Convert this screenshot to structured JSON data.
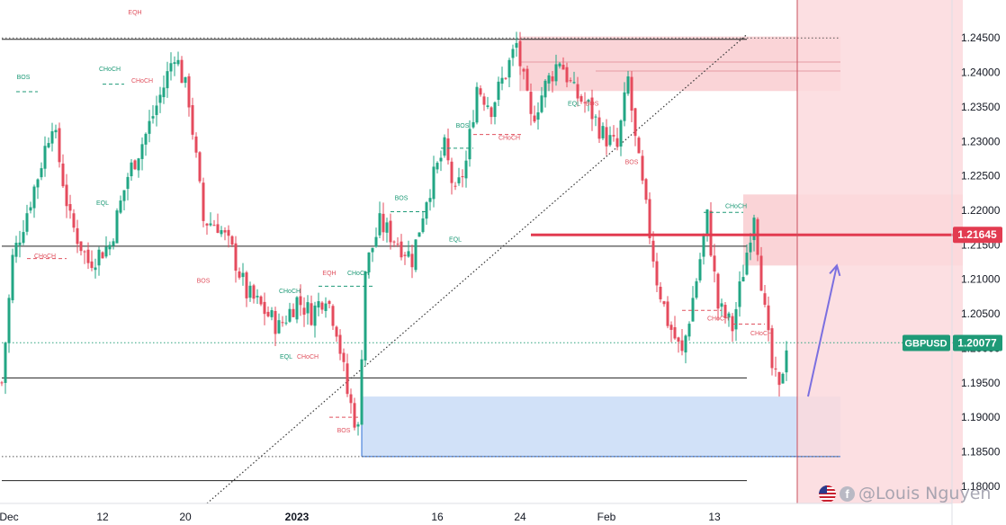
{
  "chart_data": {
    "type": "candlestick",
    "symbol": "GBPUSD",
    "current_price": "1.20077",
    "marked_level": "1.21645",
    "ylim": [
      1.1775,
      1.2505
    ],
    "y_ticks": [
      "1.24500",
      "1.24000",
      "1.23500",
      "1.23000",
      "1.22500",
      "1.22000",
      "1.21500",
      "1.21000",
      "1.20500",
      "1.20000",
      "1.19500",
      "1.19000",
      "1.18500",
      "1.18000"
    ],
    "x_ticks": [
      "Dec",
      "12",
      "20",
      "2023",
      "16",
      "24",
      "Feb",
      "13"
    ],
    "colors": {
      "up": "#22a684",
      "down": "#e54b5d",
      "supply": "#f8c5ca",
      "demand": "#c9dcf7",
      "arrow": "#7b6fe0",
      "level": "#e23b50",
      "label_green": "#1e9a77",
      "label_red": "#e0525f"
    },
    "anchors": [
      {
        "i": 0,
        "p": 1.195
      },
      {
        "i": 3,
        "p": 1.213
      },
      {
        "i": 10,
        "p": 1.225
      },
      {
        "i": 14,
        "p": 1.233
      },
      {
        "i": 19,
        "p": 1.2185
      },
      {
        "i": 24,
        "p": 1.2125
      },
      {
        "i": 30,
        "p": 1.215
      },
      {
        "i": 35,
        "p": 1.225
      },
      {
        "i": 40,
        "p": 1.231
      },
      {
        "i": 45,
        "p": 1.238
      },
      {
        "i": 48,
        "p": 1.243
      },
      {
        "i": 52,
        "p": 1.236
      },
      {
        "i": 56,
        "p": 1.2185
      },
      {
        "i": 60,
        "p": 1.218
      },
      {
        "i": 64,
        "p": 1.214
      },
      {
        "i": 68,
        "p": 1.208
      },
      {
        "i": 72,
        "p": 1.206
      },
      {
        "i": 77,
        "p": 1.203
      },
      {
        "i": 82,
        "p": 1.207
      },
      {
        "i": 86,
        "p": 1.205
      },
      {
        "i": 90,
        "p": 1.208
      },
      {
        "i": 93,
        "p": 1.203
      },
      {
        "i": 96,
        "p": 1.1935
      },
      {
        "i": 99,
        "p": 1.188
      },
      {
        "i": 101,
        "p": 1.2115
      },
      {
        "i": 105,
        "p": 1.218
      },
      {
        "i": 110,
        "p": 1.2155
      },
      {
        "i": 114,
        "p": 1.213
      },
      {
        "i": 118,
        "p": 1.222
      },
      {
        "i": 123,
        "p": 1.229
      },
      {
        "i": 126,
        "p": 1.222
      },
      {
        "i": 129,
        "p": 1.227
      },
      {
        "i": 132,
        "p": 1.238
      },
      {
        "i": 136,
        "p": 1.235
      },
      {
        "i": 140,
        "p": 1.24
      },
      {
        "i": 143,
        "p": 1.244
      },
      {
        "i": 147,
        "p": 1.233
      },
      {
        "i": 151,
        "p": 1.238
      },
      {
        "i": 155,
        "p": 1.242
      },
      {
        "i": 159,
        "p": 1.237
      },
      {
        "i": 163,
        "p": 1.235
      },
      {
        "i": 167,
        "p": 1.231
      },
      {
        "i": 171,
        "p": 1.229
      },
      {
        "i": 174,
        "p": 1.239
      },
      {
        "i": 176,
        "p": 1.23
      },
      {
        "i": 179,
        "p": 1.22
      },
      {
        "i": 182,
        "p": 1.21
      },
      {
        "i": 185,
        "p": 1.204
      },
      {
        "i": 189,
        "p": 1.199
      },
      {
        "i": 193,
        "p": 1.21
      },
      {
        "i": 196,
        "p": 1.219
      },
      {
        "i": 199,
        "p": 1.206
      },
      {
        "i": 203,
        "p": 1.203
      },
      {
        "i": 207,
        "p": 1.214
      },
      {
        "i": 209,
        "p": 1.22
      },
      {
        "i": 212,
        "p": 1.205
      },
      {
        "i": 214,
        "p": 1.197
      },
      {
        "i": 216,
        "p": 1.1935
      },
      {
        "i": 218,
        "p": 1.2008
      }
    ],
    "zones": [
      {
        "name": "supply-zone-top",
        "t0": 144,
        "t1": 233,
        "p0": 1.2373,
        "p1": 1.2452,
        "color": "#f8c5ca",
        "opacity": 0.75
      },
      {
        "name": "supply-zone-right",
        "t0": 206,
        "t1": 267,
        "p0": 1.212,
        "p1": 1.2223,
        "color": "#f8c5ca",
        "opacity": 0.75
      },
      {
        "name": "demand-zone",
        "t0": 100,
        "t1": 233,
        "p0": 1.1843,
        "p1": 1.193,
        "color": "#c9dcf7",
        "opacity": 0.85
      },
      {
        "name": "future-region",
        "t0": 221,
        "t1": 267,
        "p0": 1.1775,
        "p1": 1.2505,
        "color": "#fbd9dd",
        "opacity": 0.85
      }
    ],
    "hlines": [
      {
        "name": "level-1-2450",
        "t0": 0,
        "t1": 233,
        "p": 1.245,
        "style": "dotted",
        "color": "#555555"
      },
      {
        "name": "level-1-2448",
        "t0": 0,
        "t1": 207,
        "p": 1.2448,
        "style": "solid",
        "color": "#222222"
      },
      {
        "name": "level-1-2415",
        "t0": 144,
        "t1": 233,
        "p": 1.2415,
        "style": "solid",
        "color": "#e59aa3"
      },
      {
        "name": "level-1-2402",
        "t0": 165,
        "t1": 233,
        "p": 1.2402,
        "style": "solid",
        "color": "#e59aa3"
      },
      {
        "name": "level-1-2148",
        "t0": 0,
        "t1": 207,
        "p": 1.2148,
        "style": "solid",
        "color": "#222222"
      },
      {
        "name": "level-1-2008",
        "t0": 0,
        "t1": 267,
        "p": 1.2008,
        "style": "dotted",
        "color": "#2ea37f"
      },
      {
        "name": "level-1-1957",
        "t0": 0,
        "t1": 207,
        "p": 1.1957,
        "style": "solid",
        "color": "#222222"
      },
      {
        "name": "level-1-1843",
        "t0": 0,
        "t1": 233,
        "p": 1.1843,
        "style": "dotted",
        "color": "#555555"
      },
      {
        "name": "level-1-1808",
        "t0": 0,
        "t1": 207,
        "p": 1.1808,
        "style": "solid",
        "color": "#222222"
      }
    ],
    "key_level": {
      "t0": 147,
      "t1": 267,
      "p": 1.21645,
      "color": "#e23b50"
    },
    "vline": {
      "t": 221,
      "color": "#c8505e"
    },
    "trendline": {
      "t0": 57,
      "p0": 1.1775,
      "t1": 207,
      "p1": 1.2455
    },
    "arrow": {
      "t0": 224,
      "p0": 1.193,
      "t1": 232,
      "p1": 1.212
    },
    "labels": [
      {
        "text": "EQH",
        "t": 37,
        "p": 1.2484,
        "c": "red"
      },
      {
        "text": "BOS",
        "t": 6,
        "p": 1.239,
        "c": "green"
      },
      {
        "text": "CHoCH",
        "t": 30,
        "p": 1.2402,
        "c": "green"
      },
      {
        "text": "CHoCH",
        "t": 39,
        "p": 1.2385,
        "c": "red"
      },
      {
        "text": "EQL",
        "t": 28,
        "p": 1.2208,
        "c": "green"
      },
      {
        "text": "CHoCH",
        "t": 12,
        "p": 1.2131,
        "c": "red"
      },
      {
        "text": "BOS",
        "t": 56,
        "p": 1.2095,
        "c": "red"
      },
      {
        "text": "CHoCH",
        "t": 80,
        "p": 1.208,
        "c": "green"
      },
      {
        "text": "EQH",
        "t": 91,
        "p": 1.2106,
        "c": "red"
      },
      {
        "text": "CHoCH",
        "t": 99,
        "p": 1.2106,
        "c": "green"
      },
      {
        "text": "EQL",
        "t": 79,
        "p": 1.1985,
        "c": "green"
      },
      {
        "text": "CHoCH",
        "t": 85,
        "p": 1.1985,
        "c": "red"
      },
      {
        "text": "BOS",
        "t": 95,
        "p": 1.1878,
        "c": "red"
      },
      {
        "text": "BOS",
        "t": 111,
        "p": 1.2215,
        "c": "green"
      },
      {
        "text": "EQL",
        "t": 126,
        "p": 1.2155,
        "c": "green"
      },
      {
        "text": "BOS",
        "t": 128,
        "p": 1.232,
        "c": "green"
      },
      {
        "text": "CHoCH",
        "t": 141,
        "p": 1.2302,
        "c": "red"
      },
      {
        "text": "EQL",
        "t": 159,
        "p": 1.2352,
        "c": "green"
      },
      {
        "text": "BOS",
        "t": 164,
        "p": 1.2352,
        "c": "red"
      },
      {
        "text": "BOS",
        "t": 175,
        "p": 1.2267,
        "c": "red"
      },
      {
        "text": "CHoCH",
        "t": 204,
        "p": 1.2203,
        "c": "green"
      },
      {
        "text": "CHoCH",
        "t": 199,
        "p": 1.204,
        "c": "red"
      },
      {
        "text": "CHoCH",
        "t": 211,
        "p": 1.2019,
        "c": "red"
      }
    ],
    "dashes": [
      {
        "t0": 28,
        "t1": 34,
        "p": 1.2383,
        "c": "green"
      },
      {
        "t0": 4,
        "t1": 10,
        "p": 1.2372,
        "c": "green"
      },
      {
        "t0": 7,
        "t1": 18,
        "p": 1.213,
        "c": "red"
      },
      {
        "t0": 88,
        "t1": 103,
        "p": 1.209,
        "c": "green"
      },
      {
        "t0": 108,
        "t1": 118,
        "p": 1.2198,
        "c": "green"
      },
      {
        "t0": 122,
        "t1": 131,
        "p": 1.229,
        "c": "green"
      },
      {
        "t0": 131,
        "t1": 145,
        "p": 1.231,
        "c": "red"
      },
      {
        "t0": 195,
        "t1": 206,
        "p": 1.2197,
        "c": "green"
      },
      {
        "t0": 189,
        "t1": 200,
        "p": 1.2055,
        "c": "red"
      },
      {
        "t0": 203,
        "t1": 212,
        "p": 1.2035,
        "c": "red"
      },
      {
        "t0": 91,
        "t1": 99,
        "p": 1.19,
        "c": "red"
      }
    ]
  },
  "watermark": {
    "text": "@Louis Nguyen",
    "fb": "f"
  }
}
